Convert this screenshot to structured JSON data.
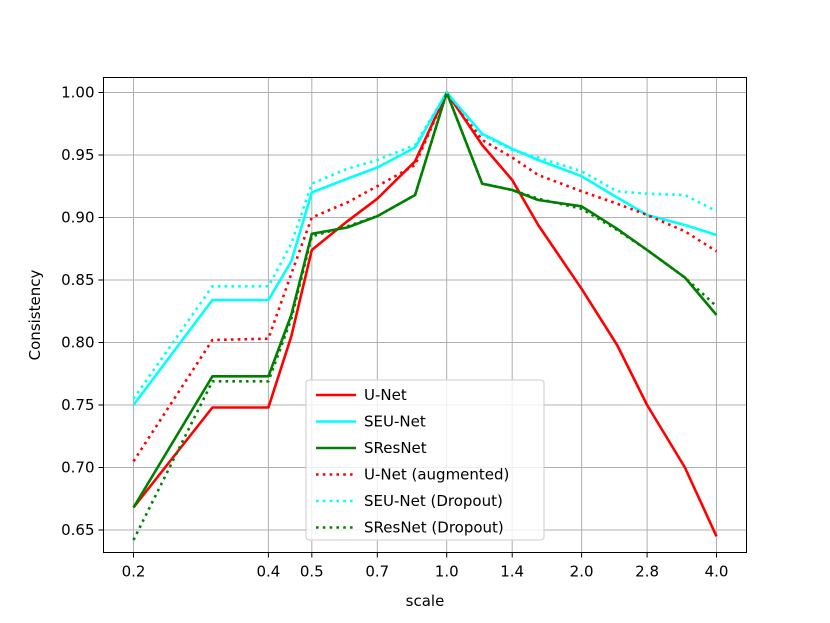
{
  "chart_data": {
    "type": "line",
    "title": "",
    "xlabel": "scale",
    "ylabel": "Consistency",
    "x": [
      0.2,
      0.3,
      0.4,
      0.45,
      0.5,
      0.6,
      0.7,
      0.85,
      1.0,
      1.2,
      1.4,
      1.6,
      2.0,
      2.4,
      2.8,
      3.4,
      4.0
    ],
    "xticks": [
      0.2,
      0.4,
      0.5,
      0.7,
      1.0,
      1.4,
      2.0,
      2.8,
      4.0
    ],
    "xtick_labels": [
      "0.2",
      "0.4",
      "0.5",
      "0.7",
      "1.0",
      "1.4",
      "2.0",
      "2.8",
      "4.0"
    ],
    "yticks": [
      0.65,
      0.7,
      0.75,
      0.8,
      0.85,
      0.9,
      0.95,
      1.0
    ],
    "ytick_labels": [
      "0.65",
      "0.70",
      "0.75",
      "0.80",
      "0.85",
      "0.90",
      "0.95",
      "1.00"
    ],
    "ylim": [
      0.632,
      1.012
    ],
    "grid": true,
    "legend_position": "lower-center",
    "series": [
      {
        "name": "U-Net",
        "color": "#ff0000",
        "style": "solid",
        "values": [
          0.668,
          0.748,
          0.748,
          0.805,
          0.874,
          0.897,
          0.915,
          0.945,
          1.0,
          0.958,
          0.93,
          0.894,
          0.843,
          0.798,
          0.75,
          0.7,
          0.645
        ]
      },
      {
        "name": "SEU-Net",
        "color": "#00ffff",
        "style": "solid",
        "values": [
          0.75,
          0.834,
          0.834,
          0.865,
          0.92,
          0.931,
          0.94,
          0.956,
          1.0,
          0.967,
          0.955,
          0.946,
          0.933,
          0.916,
          0.902,
          0.894,
          0.886
        ]
      },
      {
        "name": "SResNet",
        "color": "#008000",
        "style": "solid",
        "values": [
          0.668,
          0.773,
          0.773,
          0.822,
          0.887,
          0.892,
          0.901,
          0.918,
          1.0,
          0.927,
          0.922,
          0.914,
          0.909,
          0.891,
          0.874,
          0.852,
          0.822
        ]
      },
      {
        "name": "U-Net (augmented)",
        "color": "#ff0000",
        "style": "dotted",
        "values": [
          0.705,
          0.802,
          0.803,
          0.855,
          0.9,
          0.912,
          0.925,
          0.942,
          1.0,
          0.962,
          0.948,
          0.934,
          0.921,
          0.911,
          0.902,
          0.889,
          0.873
        ]
      },
      {
        "name": "SEU-Net (Dropout)",
        "color": "#00ffff",
        "style": "dotted",
        "values": [
          0.755,
          0.845,
          0.845,
          0.879,
          0.927,
          0.939,
          0.946,
          0.958,
          1.0,
          0.966,
          0.954,
          0.948,
          0.937,
          0.921,
          0.919,
          0.918,
          0.905
        ]
      },
      {
        "name": "SResNet (Dropout)",
        "color": "#008000",
        "style": "dotted",
        "values": [
          0.642,
          0.769,
          0.769,
          0.819,
          0.885,
          0.893,
          0.901,
          0.918,
          1.0,
          0.927,
          0.922,
          0.915,
          0.907,
          0.89,
          0.874,
          0.852,
          0.829
        ]
      }
    ]
  }
}
